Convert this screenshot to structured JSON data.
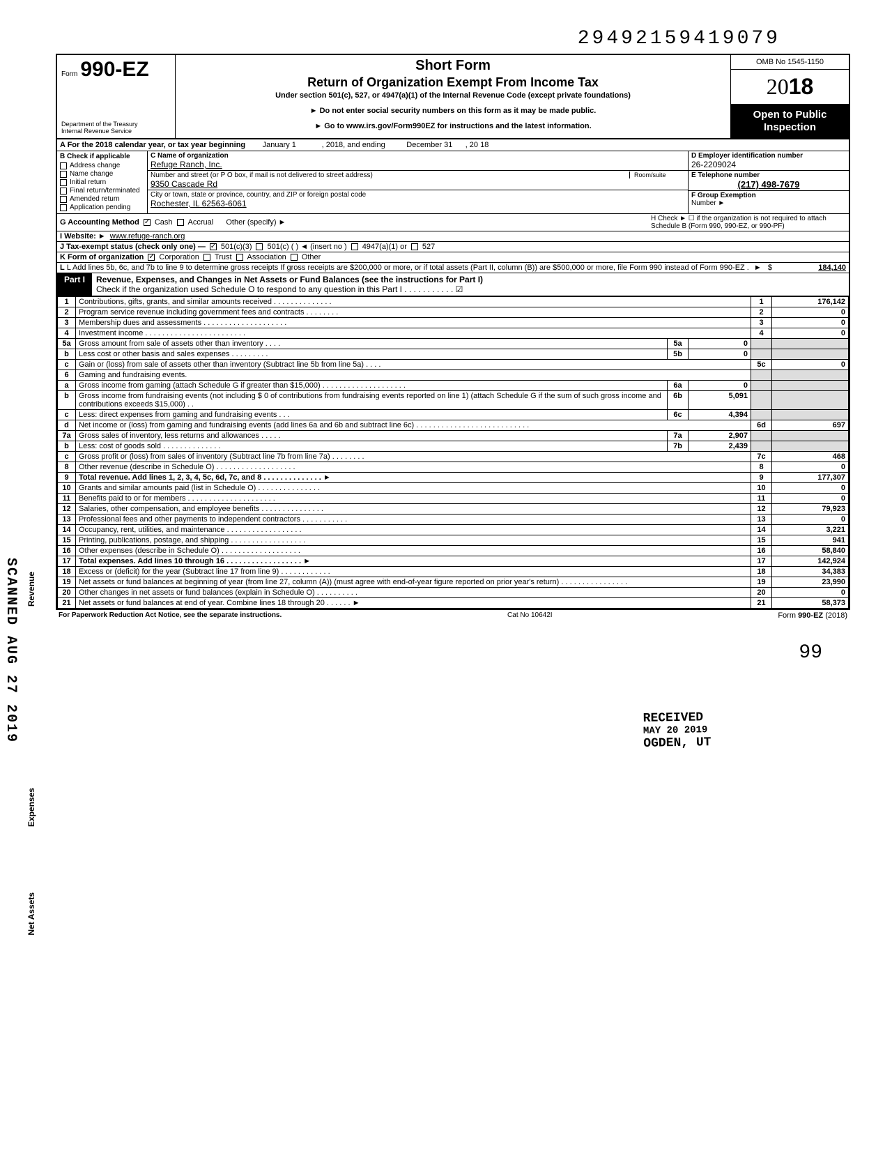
{
  "top_number": "29492159419079",
  "header": {
    "form_prefix": "Form",
    "form_number": "990-EZ",
    "title1": "Short Form",
    "title2": "Return of Organization Exempt From Income Tax",
    "subtitle": "Under section 501(c), 527, or 4947(a)(1) of the Internal Revenue Code (except private foundations)",
    "note1": "► Do not enter social security numbers on this form as it may be made public.",
    "note2": "► Go to www.irs.gov/Form990EZ for instructions and the latest information.",
    "dept1": "Department of the Treasury",
    "dept2": "Internal Revenue Service",
    "omb": "OMB No 1545-1150",
    "year_prefix": "20",
    "year_suffix": "18",
    "open1": "Open to Public",
    "open2": "Inspection"
  },
  "lineA": {
    "text": "A For the 2018 calendar year, or tax year beginning",
    "begin": "January 1",
    "mid": ", 2018, and ending",
    "end": "December 31",
    "yr": ", 20   18"
  },
  "B": {
    "hdr": "B Check if applicable",
    "items": [
      "Address change",
      "Name change",
      "Initial return",
      "Final return/terminated",
      "Amended return",
      "Application pending"
    ]
  },
  "C": {
    "hdr": "C Name of organization",
    "name": "Refuge Ranch, Inc.",
    "addr_hdr": "Number and street (or P O box, if mail is not delivered to street address)",
    "room_hdr": "Room/suite",
    "addr": "9350 Cascade Rd",
    "city_hdr": "City or town, state or province, country, and ZIP or foreign postal code",
    "city": "Rochester, IL 62563-6061"
  },
  "D": {
    "hdr": "D Employer identification number",
    "ein": "26-2209024",
    "e_hdr": "E Telephone number",
    "phone": "(217) 498-7679",
    "f_hdr": "F Group Exemption",
    "f_hdr2": "Number ►"
  },
  "G": {
    "label": "G Accounting Method",
    "cash": "Cash",
    "accrual": "Accrual",
    "other": "Other (specify) ►"
  },
  "H": {
    "text": "H Check ► ☐ if the organization is not required to attach Schedule B (Form 990, 990-EZ, or 990-PF)"
  },
  "I": {
    "label": "I Website: ►",
    "val": "www.refuge-ranch.org"
  },
  "J": {
    "label": "J Tax-exempt status (check only one) —",
    "c3": "501(c)(3)",
    "c": "501(c) (        ) ◄ (insert no )",
    "a": "4947(a)(1) or",
    "s527": "527"
  },
  "K": {
    "label": "K Form of organization",
    "corp": "Corporation",
    "trust": "Trust",
    "assoc": "Association",
    "other": "Other"
  },
  "L": {
    "text": "L Add lines 5b, 6c, and 7b to line 9 to determine gross receipts If gross receipts are $200,000 or more, or if total assets (Part II, column (B)) are $500,000 or more, file Form 990 instead of Form 990-EZ .",
    "amt": "184,140"
  },
  "part1": {
    "tag": "Part I",
    "title": "Revenue, Expenses, and Changes in Net Assets or Fund Balances (see the instructions for Part I)",
    "check": "Check if the organization used Schedule O to respond to any question in this Part I . . . . . . . . . . . ☑"
  },
  "rows": [
    {
      "n": "1",
      "d": "Contributions, gifts, grants, and similar amounts received . . . . . . . . . . . . . .",
      "r": "1",
      "a": "176,142"
    },
    {
      "n": "2",
      "d": "Program service revenue including government fees and contracts     . . . . . . . .",
      "r": "2",
      "a": "0"
    },
    {
      "n": "3",
      "d": "Membership dues and assessments . . . . . . . . . . . . . . . . . . . .",
      "r": "3",
      "a": "0"
    },
    {
      "n": "4",
      "d": "Investment income   . . . . . . . . . . . . . . . . . . . . . . . .",
      "r": "4",
      "a": "0"
    },
    {
      "n": "5a",
      "d": "Gross amount from sale of assets other than inventory    . . . .",
      "m": "5a",
      "ma": "0"
    },
    {
      "n": "b",
      "d": "Less cost or other basis and sales expenses . . . . . . . . .",
      "m": "5b",
      "ma": "0"
    },
    {
      "n": "c",
      "d": "Gain or (loss) from sale of assets other than inventory (Subtract line 5b from line 5a) . . . .",
      "r": "5c",
      "a": "0"
    },
    {
      "n": "6",
      "d": "Gaming and fundraising events."
    },
    {
      "n": "a",
      "d": "Gross income from gaming (attach Schedule G if greater than $15,000) . . . . . . . . . . . . . . . . . . . .",
      "m": "6a",
      "ma": "0"
    },
    {
      "n": "b",
      "d": "Gross income from fundraising events (not including $               0 of contributions from fundraising events reported on line 1) (attach Schedule G if the sum of such gross income and contributions exceeds $15,000) . .",
      "m": "6b",
      "ma": "5,091"
    },
    {
      "n": "c",
      "d": "Less: direct expenses from gaming and fundraising events   . . .",
      "m": "6c",
      "ma": "4,394"
    },
    {
      "n": "d",
      "d": "Net income or (loss) from gaming and fundraising events (add lines 6a and 6b and subtract line 6c)   . . . . . . . . . . . . . . . . . . . . . . . . . . .",
      "r": "6d",
      "a": "697"
    },
    {
      "n": "7a",
      "d": "Gross sales of inventory, less returns and allowances  . . . . .",
      "m": "7a",
      "ma": "2,907"
    },
    {
      "n": "b",
      "d": "Less: cost of goods sold    . . . . . . . . . . . . . .",
      "m": "7b",
      "ma": "2,439"
    },
    {
      "n": "c",
      "d": "Gross profit or (loss) from sales of inventory (Subtract line 7b from line 7a)  . . . . . . . .",
      "r": "7c",
      "a": "468"
    },
    {
      "n": "8",
      "d": "Other revenue (describe in Schedule O) . . . . . . . . . . . . . . . . . . .",
      "r": "8",
      "a": "0"
    },
    {
      "n": "9",
      "d": "Total revenue. Add lines 1, 2, 3, 4, 5c, 6d, 7c, and 8  . . . . . . . . . . . . . . ►",
      "r": "9",
      "a": "177,307",
      "bold": true
    },
    {
      "n": "10",
      "d": "Grants and similar amounts paid (list in Schedule O)  . . . . . . . . . . . . . . .",
      "r": "10",
      "a": "0"
    },
    {
      "n": "11",
      "d": "Benefits paid to or for members  . . . . . . . . . . . . . . . . . . . . .",
      "r": "11",
      "a": "0"
    },
    {
      "n": "12",
      "d": "Salaries, other compensation, and employee benefits . . . . . . . . . . . . . . .",
      "r": "12",
      "a": "79,923"
    },
    {
      "n": "13",
      "d": "Professional fees and other payments to independent contractors . . . . . . . . . . .",
      "r": "13",
      "a": "0"
    },
    {
      "n": "14",
      "d": "Occupancy, rent, utilities, and maintenance  . . . . . . . . . . . . . . . . . .",
      "r": "14",
      "a": "3,221"
    },
    {
      "n": "15",
      "d": "Printing, publications, postage, and shipping . . . . . . . . . . . . . . . . . .",
      "r": "15",
      "a": "941"
    },
    {
      "n": "16",
      "d": "Other expenses (describe in Schedule O) . . . . . . . . . . . . . . . . . . .",
      "r": "16",
      "a": "58,840"
    },
    {
      "n": "17",
      "d": "Total expenses. Add lines 10 through 16  . . . . . . . . . . . . . . . . . . ►",
      "r": "17",
      "a": "142,924",
      "bold": true
    },
    {
      "n": "18",
      "d": "Excess or (deficit) for the year (Subtract line 17 from line 9)   . . . . . . . . . . . .",
      "r": "18",
      "a": "34,383"
    },
    {
      "n": "19",
      "d": "Net assets or fund balances at beginning of year (from line 27, column (A)) (must agree with end-of-year figure reported on prior year's return)   . . . . . . . . . . . . . . . .",
      "r": "19",
      "a": "23,990"
    },
    {
      "n": "20",
      "d": "Other changes in net assets or fund balances (explain in Schedule O) . . . . . . . . . .",
      "r": "20",
      "a": "0"
    },
    {
      "n": "21",
      "d": "Net assets or fund balances at end of year. Combine lines 18 through 20   . . . . . . ►",
      "r": "21",
      "a": "58,373"
    }
  ],
  "side": {
    "rev": "Revenue",
    "exp": "Expenses",
    "na": "Net Assets"
  },
  "scanned": "SCANNED AUG 27 2019",
  "stamp": {
    "r": "RECEIVED",
    "d": "MAY 20 2019",
    "o": "OGDEN, UT"
  },
  "footer": {
    "l": "For Paperwork Reduction Act Notice, see the separate instructions.",
    "m": "Cat No 10642I",
    "r": "Form 990-EZ (2018)"
  },
  "pagenum": "99"
}
